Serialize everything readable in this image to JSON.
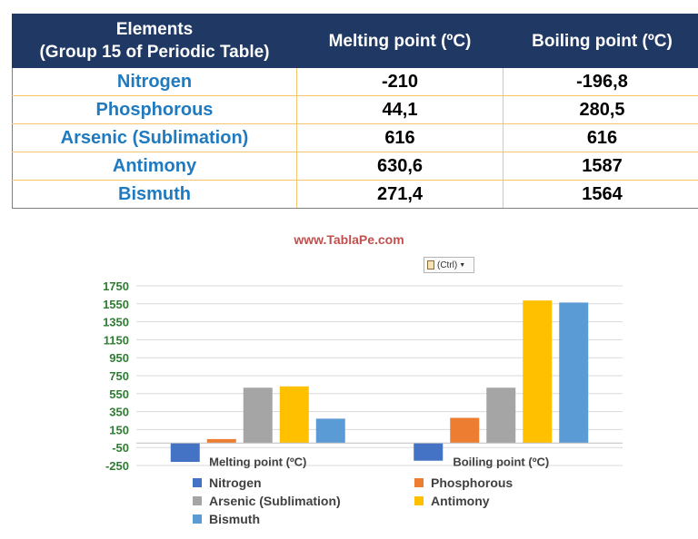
{
  "table": {
    "headers": [
      "Elements\n(Group 15 of Periodic Table)",
      "Melting point (ºC)",
      "Boiling point (ºC)"
    ],
    "rows": [
      {
        "element": "Nitrogen",
        "melting": "-210",
        "boiling": "-196,8"
      },
      {
        "element": "Phosphorous",
        "melting": "44,1",
        "boiling": "280,5"
      },
      {
        "element": "Arsenic (Sublimation)",
        "melting": "616",
        "boiling": "616"
      },
      {
        "element": "Antimony",
        "melting": "630,6",
        "boiling": "1587"
      },
      {
        "element": "Bismuth",
        "melting": "271,4",
        "boiling": "1564"
      }
    ]
  },
  "watermark": "www.TablaPe.com",
  "paste_options": {
    "label": "(Ctrl)",
    "icon": "clipboard-icon"
  },
  "chart_data": {
    "type": "bar",
    "categories": [
      "Melting point (ºC)",
      "Boiling point (ºC)"
    ],
    "series": [
      {
        "name": "Nitrogen",
        "color": "#4472c4",
        "values": [
          -210,
          -196.8
        ]
      },
      {
        "name": "Phosphorous",
        "color": "#ed7d31",
        "values": [
          44.1,
          280.5
        ]
      },
      {
        "name": "Arsenic (Sublimation)",
        "color": "#a5a5a5",
        "values": [
          616,
          616
        ]
      },
      {
        "name": "Antimony",
        "color": "#ffc000",
        "values": [
          630.6,
          1587
        ]
      },
      {
        "name": "Bismuth",
        "color": "#5b9bd5",
        "values": [
          271.4,
          1564
        ]
      }
    ],
    "ylim": [
      -250,
      1750
    ],
    "yticks": [
      -250,
      -50,
      150,
      350,
      550,
      750,
      950,
      1150,
      1350,
      1550,
      1750
    ],
    "ytick_labels": [
      "-250",
      "-50",
      "150",
      "350",
      "550",
      "750",
      "950",
      "1150",
      "1350",
      "1550",
      "1750"
    ],
    "grid": true,
    "legend_position": "bottom"
  }
}
